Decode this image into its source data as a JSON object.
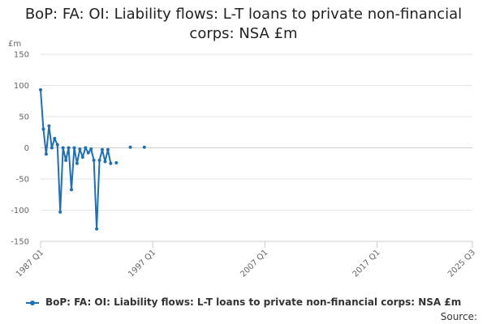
{
  "chart_data": {
    "type": "line",
    "title": "BoP: FA: OI: Liability flows: L-T loans to private non-financial corps: NSA £m",
    "title_lines": [
      "BoP: FA: OI: Liability flows: L-T loans to private non-financial",
      "corps: NSA £m"
    ],
    "unit_label": "£m",
    "ylim": [
      -150,
      150
    ],
    "yticks": [
      150,
      100,
      50,
      0,
      -50,
      -100,
      -150
    ],
    "xrange": [
      "1987 Q1",
      "2025 Q3"
    ],
    "xticks": [
      "1987 Q1",
      "1997 Q1",
      "2007 Q1",
      "2017 Q1",
      "2025 Q3"
    ],
    "grid": true,
    "legend_position": "bottom",
    "color": "#1d70b8",
    "series": [
      {
        "name": "BoP: FA: OI: Liability flows: L-T loans to private non-financial corps: NSA £m",
        "points": [
          [
            "1987 Q1",
            93
          ],
          [
            "1987 Q2",
            30
          ],
          [
            "1987 Q3",
            -10
          ],
          [
            "1987 Q4",
            35
          ],
          [
            "1988 Q1",
            0
          ],
          [
            "1988 Q2",
            15
          ],
          [
            "1988 Q3",
            5
          ],
          [
            "1988 Q4",
            -103
          ],
          [
            "1989 Q1",
            0
          ],
          [
            "1989 Q2",
            -20
          ],
          [
            "1989 Q3",
            0
          ],
          [
            "1989 Q4",
            -67
          ],
          [
            "1990 Q1",
            0
          ],
          [
            "1990 Q2",
            -25
          ],
          [
            "1990 Q3",
            -2
          ],
          [
            "1990 Q4",
            -15
          ],
          [
            "1991 Q1",
            0
          ],
          [
            "1991 Q2",
            -8
          ],
          [
            "1991 Q3",
            -2
          ],
          [
            "1991 Q4",
            -20
          ],
          [
            "1992 Q1",
            -130
          ],
          [
            "1992 Q2",
            -20
          ],
          [
            "1992 Q3",
            -3
          ],
          [
            "1992 Q4",
            -22
          ],
          [
            "1993 Q1",
            -3
          ],
          [
            "1993 Q2",
            -25
          ],
          [
            "1993 Q3",
            null
          ],
          [
            "1993 Q4",
            -24
          ],
          [
            "1994 Q1",
            null
          ],
          [
            "1994 Q2",
            null
          ],
          [
            "1994 Q3",
            null
          ],
          [
            "1994 Q4",
            null
          ],
          [
            "1995 Q1",
            1
          ],
          [
            "1995 Q2",
            null
          ],
          [
            "1995 Q3",
            null
          ],
          [
            "1995 Q4",
            null
          ],
          [
            "1996 Q1",
            null
          ],
          [
            "1996 Q2",
            1
          ]
        ]
      }
    ]
  },
  "legend": {
    "label": "BoP: FA: OI: Liability flows: L-T loans to private non-financial corps: NSA £m"
  },
  "footer": {
    "source_label": "Source:"
  }
}
